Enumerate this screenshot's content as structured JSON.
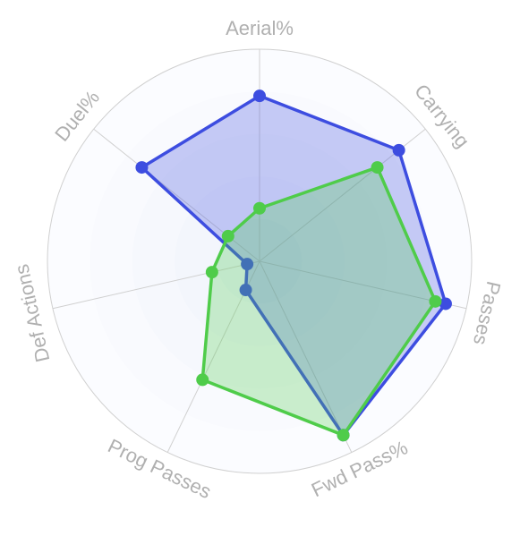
{
  "chart_data": {
    "type": "radar",
    "categories": [
      "Aerial%",
      "Carrying",
      "Passes",
      "Fwd Pass%",
      "Prog Passes",
      "Def Actions",
      "Duel%"
    ],
    "rlim": [
      0,
      100
    ],
    "rticks": [
      20,
      40,
      60,
      80,
      100
    ],
    "grid": true,
    "series": [
      {
        "color": "#3d4de0",
        "values": [
          78,
          84,
          90,
          91,
          15,
          6,
          71
        ]
      },
      {
        "color": "#4fcc4a",
        "values": [
          25,
          71,
          85,
          91,
          62,
          23,
          19
        ]
      }
    ]
  }
}
